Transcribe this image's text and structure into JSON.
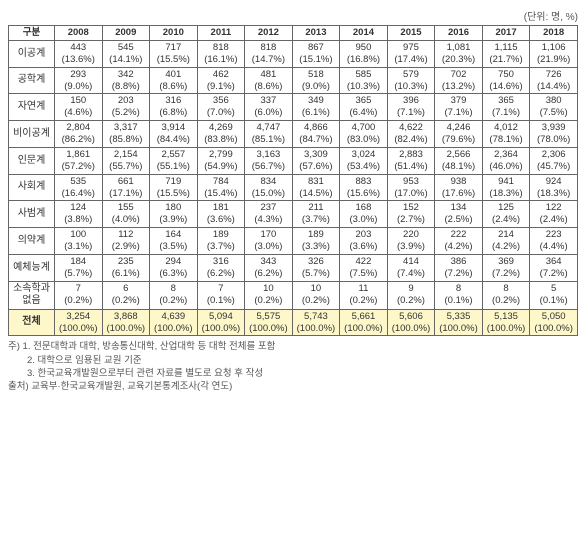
{
  "unit_label": "(단위: 명, %)",
  "col_label": "구분",
  "years": [
    "2008",
    "2009",
    "2010",
    "2011",
    "2012",
    "2013",
    "2014",
    "2015",
    "2016",
    "2017",
    "2018"
  ],
  "rows": [
    {
      "label": "이공계",
      "cells": [
        {
          "v": "443",
          "p": "(13.6%)"
        },
        {
          "v": "545",
          "p": "(14.1%)"
        },
        {
          "v": "717",
          "p": "(15.5%)"
        },
        {
          "v": "818",
          "p": "(16.1%)"
        },
        {
          "v": "818",
          "p": "(14.7%)"
        },
        {
          "v": "867",
          "p": "(15.1%)"
        },
        {
          "v": "950",
          "p": "(16.8%)"
        },
        {
          "v": "975",
          "p": "(17.4%)"
        },
        {
          "v": "1,081",
          "p": "(20.3%)"
        },
        {
          "v": "1,115",
          "p": "(21.7%)"
        },
        {
          "v": "1,106",
          "p": "(21.9%)"
        }
      ]
    },
    {
      "label": "공학계",
      "cells": [
        {
          "v": "293",
          "p": "(9.0%)"
        },
        {
          "v": "342",
          "p": "(8.8%)"
        },
        {
          "v": "401",
          "p": "(8.6%)"
        },
        {
          "v": "462",
          "p": "(9.1%)"
        },
        {
          "v": "481",
          "p": "(8.6%)"
        },
        {
          "v": "518",
          "p": "(9.0%)"
        },
        {
          "v": "585",
          "p": "(10.3%)"
        },
        {
          "v": "579",
          "p": "(10.3%)"
        },
        {
          "v": "702",
          "p": "(13.2%)"
        },
        {
          "v": "750",
          "p": "(14.6%)"
        },
        {
          "v": "726",
          "p": "(14.4%)"
        }
      ]
    },
    {
      "label": "자연계",
      "cells": [
        {
          "v": "150",
          "p": "(4.6%)"
        },
        {
          "v": "203",
          "p": "(5.2%)"
        },
        {
          "v": "316",
          "p": "(6.8%)"
        },
        {
          "v": "356",
          "p": "(7.0%)"
        },
        {
          "v": "337",
          "p": "(6.0%)"
        },
        {
          "v": "349",
          "p": "(6.1%)"
        },
        {
          "v": "365",
          "p": "(6.4%)"
        },
        {
          "v": "396",
          "p": "(7.1%)"
        },
        {
          "v": "379",
          "p": "(7.1%)"
        },
        {
          "v": "365",
          "p": "(7.1%)"
        },
        {
          "v": "380",
          "p": "(7.5%)"
        }
      ]
    },
    {
      "label": "비이공계",
      "cells": [
        {
          "v": "2,804",
          "p": "(86.2%)"
        },
        {
          "v": "3,317",
          "p": "(85.8%)"
        },
        {
          "v": "3,914",
          "p": "(84.4%)"
        },
        {
          "v": "4,269",
          "p": "(83.8%)"
        },
        {
          "v": "4,747",
          "p": "(85.1%)"
        },
        {
          "v": "4,866",
          "p": "(84.7%)"
        },
        {
          "v": "4,700",
          "p": "(83.0%)"
        },
        {
          "v": "4,622",
          "p": "(82.4%)"
        },
        {
          "v": "4,246",
          "p": "(79.6%)"
        },
        {
          "v": "4,012",
          "p": "(78.1%)"
        },
        {
          "v": "3,939",
          "p": "(78.0%)"
        }
      ]
    },
    {
      "label": "인문계",
      "cells": [
        {
          "v": "1,861",
          "p": "(57.2%)"
        },
        {
          "v": "2,154",
          "p": "(55.7%)"
        },
        {
          "v": "2,557",
          "p": "(55.1%)"
        },
        {
          "v": "2,799",
          "p": "(54.9%)"
        },
        {
          "v": "3,163",
          "p": "(56.7%)"
        },
        {
          "v": "3,309",
          "p": "(57.6%)"
        },
        {
          "v": "3,024",
          "p": "(53.4%)"
        },
        {
          "v": "2,883",
          "p": "(51.4%)"
        },
        {
          "v": "2,566",
          "p": "(48.1%)"
        },
        {
          "v": "2,364",
          "p": "(46.0%)"
        },
        {
          "v": "2,306",
          "p": "(45.7%)"
        }
      ]
    },
    {
      "label": "사회계",
      "cells": [
        {
          "v": "535",
          "p": "(16.4%)"
        },
        {
          "v": "661",
          "p": "(17.1%)"
        },
        {
          "v": "719",
          "p": "(15.5%)"
        },
        {
          "v": "784",
          "p": "(15.4%)"
        },
        {
          "v": "834",
          "p": "(15.0%)"
        },
        {
          "v": "831",
          "p": "(14.5%)"
        },
        {
          "v": "883",
          "p": "(15.6%)"
        },
        {
          "v": "953",
          "p": "(17.0%)"
        },
        {
          "v": "938",
          "p": "(17.6%)"
        },
        {
          "v": "941",
          "p": "(18.3%)"
        },
        {
          "v": "924",
          "p": "(18.3%)"
        }
      ]
    },
    {
      "label": "사범계",
      "cells": [
        {
          "v": "124",
          "p": "(3.8%)"
        },
        {
          "v": "155",
          "p": "(4.0%)"
        },
        {
          "v": "180",
          "p": "(3.9%)"
        },
        {
          "v": "181",
          "p": "(3.6%)"
        },
        {
          "v": "237",
          "p": "(4.3%)"
        },
        {
          "v": "211",
          "p": "(3.7%)"
        },
        {
          "v": "168",
          "p": "(3.0%)"
        },
        {
          "v": "152",
          "p": "(2.7%)"
        },
        {
          "v": "134",
          "p": "(2.5%)"
        },
        {
          "v": "125",
          "p": "(2.4%)"
        },
        {
          "v": "122",
          "p": "(2.4%)"
        }
      ]
    },
    {
      "label": "의약계",
      "cells": [
        {
          "v": "100",
          "p": "(3.1%)"
        },
        {
          "v": "112",
          "p": "(2.9%)"
        },
        {
          "v": "164",
          "p": "(3.5%)"
        },
        {
          "v": "189",
          "p": "(3.7%)"
        },
        {
          "v": "170",
          "p": "(3.0%)"
        },
        {
          "v": "189",
          "p": "(3.3%)"
        },
        {
          "v": "203",
          "p": "(3.6%)"
        },
        {
          "v": "220",
          "p": "(3.9%)"
        },
        {
          "v": "222",
          "p": "(4.2%)"
        },
        {
          "v": "214",
          "p": "(4.2%)"
        },
        {
          "v": "223",
          "p": "(4.4%)"
        }
      ]
    },
    {
      "label": "예체능계",
      "cells": [
        {
          "v": "184",
          "p": "(5.7%)"
        },
        {
          "v": "235",
          "p": "(6.1%)"
        },
        {
          "v": "294",
          "p": "(6.3%)"
        },
        {
          "v": "316",
          "p": "(6.2%)"
        },
        {
          "v": "343",
          "p": "(6.2%)"
        },
        {
          "v": "326",
          "p": "(5.7%)"
        },
        {
          "v": "422",
          "p": "(7.5%)"
        },
        {
          "v": "414",
          "p": "(7.4%)"
        },
        {
          "v": "386",
          "p": "(7.2%)"
        },
        {
          "v": "369",
          "p": "(7.2%)"
        },
        {
          "v": "364",
          "p": "(7.2%)"
        }
      ]
    },
    {
      "label": "소속학과없음",
      "cells": [
        {
          "v": "7",
          "p": "(0.2%)"
        },
        {
          "v": "6",
          "p": "(0.2%)"
        },
        {
          "v": "8",
          "p": "(0.2%)"
        },
        {
          "v": "7",
          "p": "(0.1%)"
        },
        {
          "v": "10",
          "p": "(0.2%)"
        },
        {
          "v": "10",
          "p": "(0.2%)"
        },
        {
          "v": "11",
          "p": "(0.2%)"
        },
        {
          "v": "9",
          "p": "(0.2%)"
        },
        {
          "v": "8",
          "p": "(0.1%)"
        },
        {
          "v": "8",
          "p": "(0.2%)"
        },
        {
          "v": "5",
          "p": "(0.1%)"
        }
      ]
    }
  ],
  "total_row": {
    "label": "전체",
    "cells": [
      {
        "v": "3,254",
        "p": "(100.0%)"
      },
      {
        "v": "3,868",
        "p": "(100.0%)"
      },
      {
        "v": "4,639",
        "p": "(100.0%)"
      },
      {
        "v": "5,094",
        "p": "(100.0%)"
      },
      {
        "v": "5,575",
        "p": "(100.0%)"
      },
      {
        "v": "5,743",
        "p": "(100.0%)"
      },
      {
        "v": "5,661",
        "p": "(100.0%)"
      },
      {
        "v": "5,606",
        "p": "(100.0%)"
      },
      {
        "v": "5,335",
        "p": "(100.0%)"
      },
      {
        "v": "5,135",
        "p": "(100.0%)"
      },
      {
        "v": "5,050",
        "p": "(100.0%)"
      }
    ]
  },
  "notes": [
    "주) 1. 전문대학과 대학, 방송통신대학, 산업대학 등 대학 전체를 포함",
    "　　2. 대학으로 임용된 교원 기준",
    "　　3. 한국교육개발원으로부터 관련 자료를 별도로 요청 후 작성",
    "출처) 교육부·한국교육개발원, 교육기본통계조사(각 연도)"
  ]
}
